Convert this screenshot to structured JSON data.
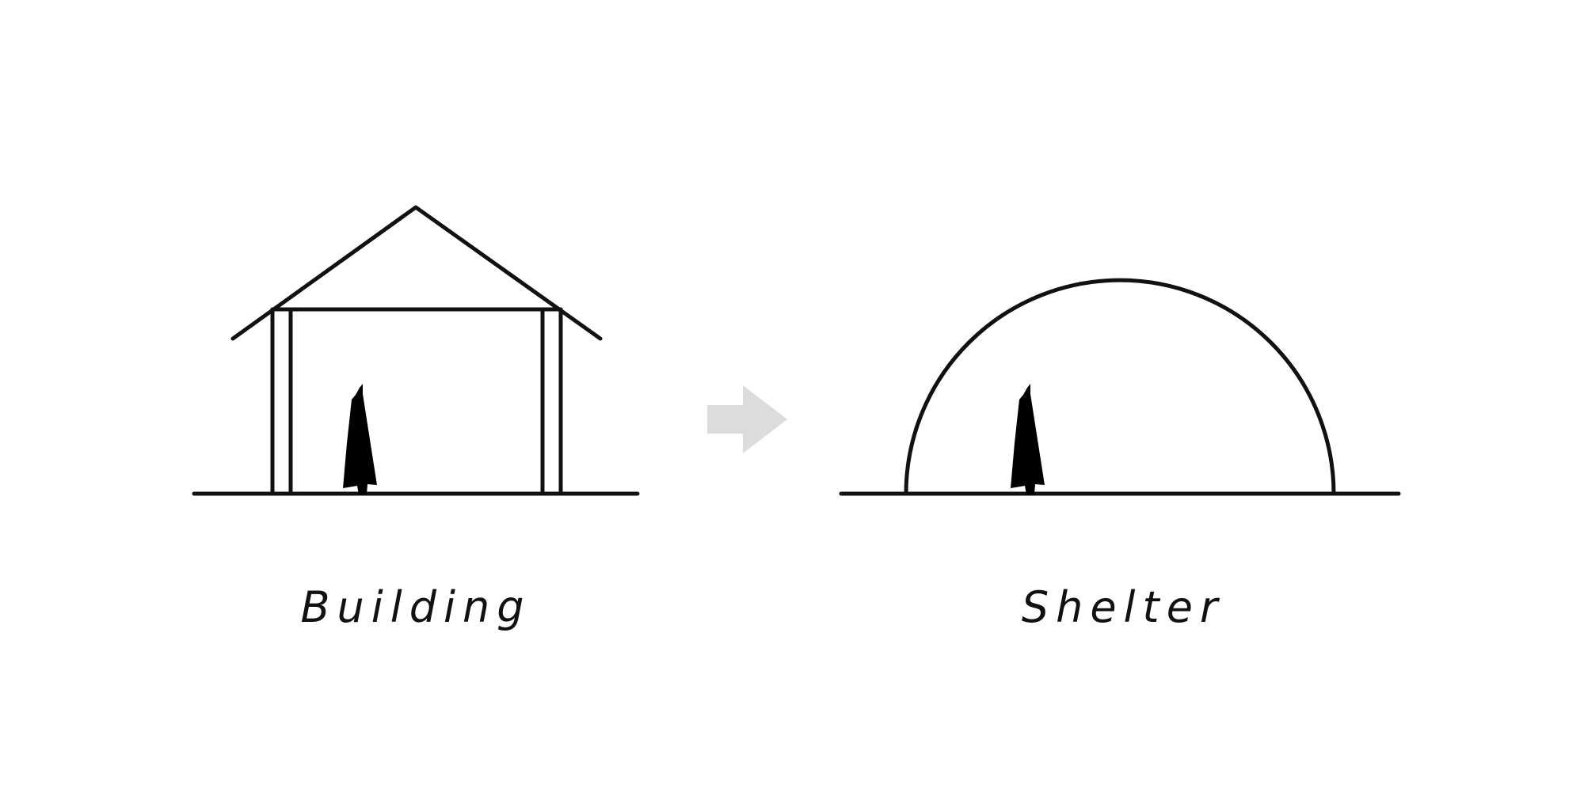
{
  "labels": {
    "left": "Building",
    "right": "Shelter"
  },
  "colors": {
    "line": "#111111",
    "figure": "#000000",
    "arrow": "#dcdcdc",
    "background": "#ffffff"
  }
}
